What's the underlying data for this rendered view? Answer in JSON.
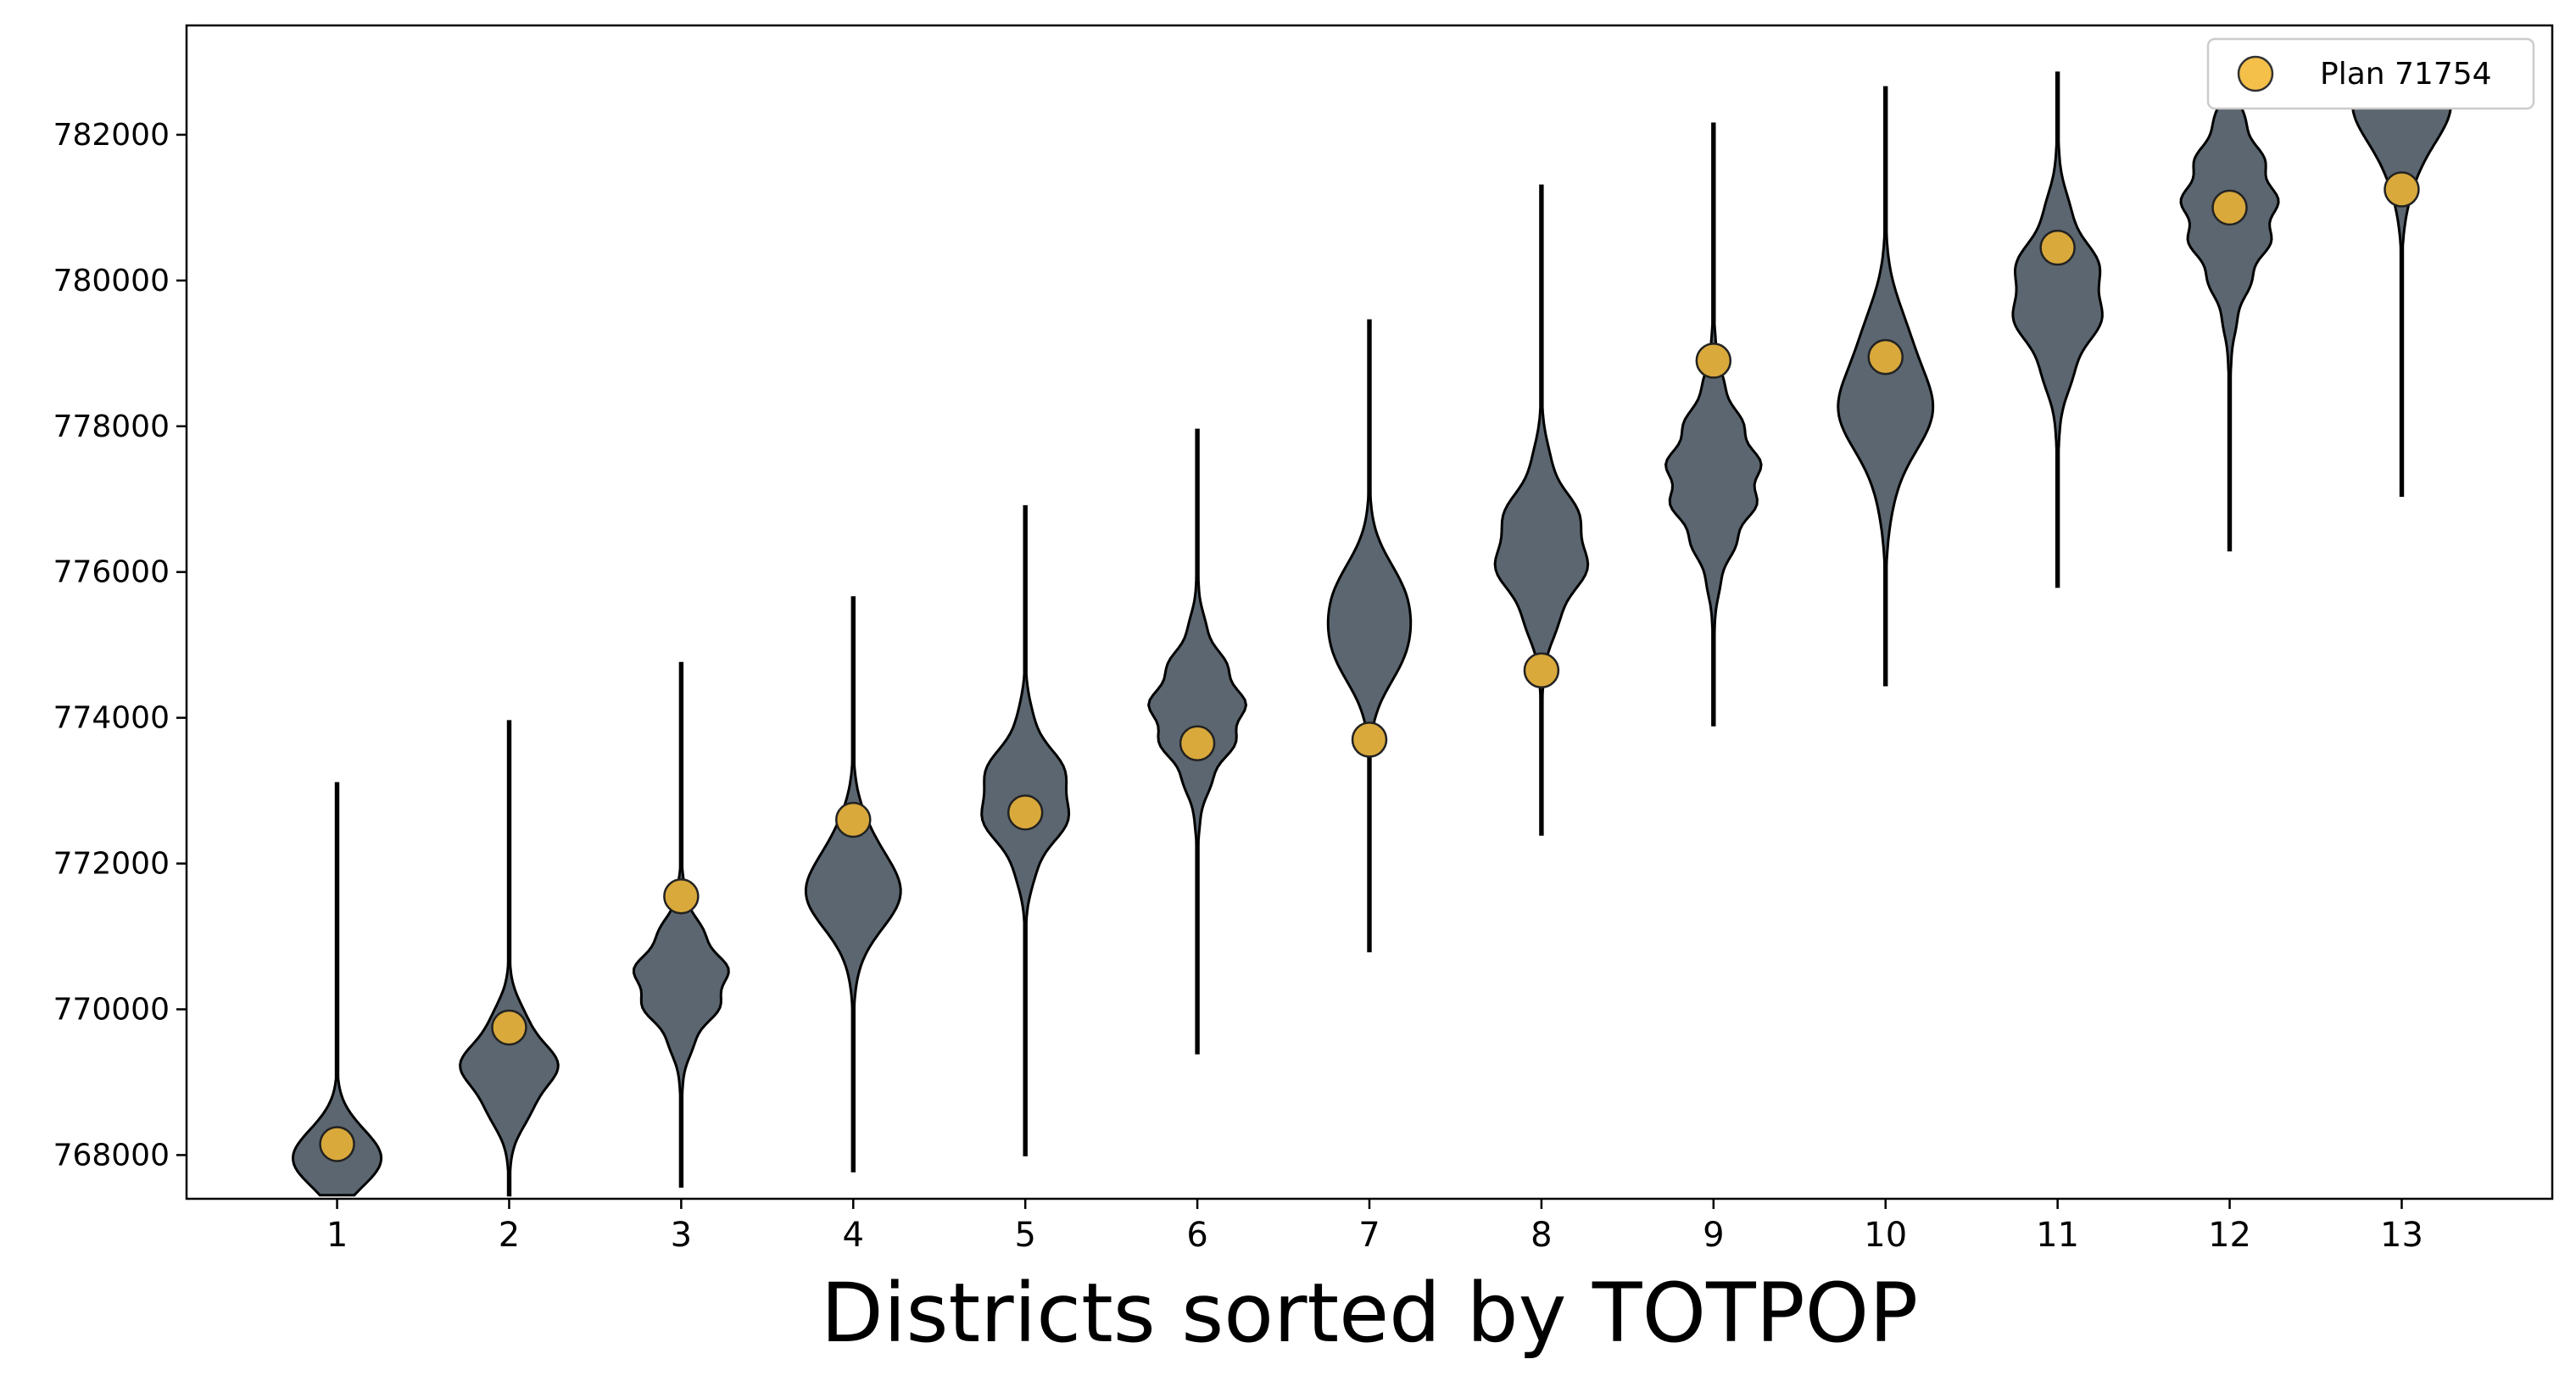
{
  "chart_data": {
    "type": "violin",
    "xlabel": "Districts sorted by TOTPOP",
    "ylabel": "",
    "title": "",
    "categories": [
      "1",
      "2",
      "3",
      "4",
      "5",
      "6",
      "7",
      "8",
      "9",
      "10",
      "11",
      "12",
      "13"
    ],
    "ylim": [
      767400,
      783500
    ],
    "yticks": [
      768000,
      770000,
      772000,
      774000,
      776000,
      778000,
      780000,
      782000
    ],
    "ytick_labels": [
      "768000",
      "770000",
      "772000",
      "774000",
      "776000",
      "778000",
      "780000",
      "782000"
    ],
    "legend": {
      "position": "top-right",
      "entries": [
        {
          "label": "Plan 71754",
          "marker": "circle",
          "color": "#f5c04a"
        }
      ]
    },
    "grid": false,
    "violin_color": "#5b6670",
    "marker_color": "#d9a93c",
    "violins": [
      {
        "min": 767450,
        "max": 773100,
        "median": 768000,
        "spread": 380
      },
      {
        "min": 767450,
        "max": 773950,
        "median": 769200,
        "spread": 520
      },
      {
        "min": 767570,
        "max": 774750,
        "median": 770400,
        "spread": 560
      },
      {
        "min": 767780,
        "max": 775650,
        "median": 771700,
        "spread": 600
      },
      {
        "min": 768000,
        "max": 776900,
        "median": 772900,
        "spread": 620
      },
      {
        "min": 769400,
        "max": 777950,
        "median": 774100,
        "spread": 650
      },
      {
        "min": 770800,
        "max": 779450,
        "median": 775300,
        "spread": 640
      },
      {
        "min": 772400,
        "max": 781300,
        "median": 776300,
        "spread": 720
      },
      {
        "min": 773900,
        "max": 782150,
        "median": 777300,
        "spread": 760
      },
      {
        "min": 774450,
        "max": 782650,
        "median": 778400,
        "spread": 820
      },
      {
        "min": 775800,
        "max": 782850,
        "median": 779800,
        "spread": 760
      },
      {
        "min": 776300,
        "max": 782950,
        "median": 781000,
        "spread": 820
      },
      {
        "min": 777050,
        "max": 783000,
        "median": 782400,
        "spread": 700
      }
    ],
    "series": [
      {
        "name": "Plan 71754",
        "values": [
          768150,
          769750,
          771550,
          772600,
          772700,
          773650,
          773700,
          774650,
          778900,
          778950,
          780450,
          781000,
          781250
        ]
      }
    ]
  }
}
